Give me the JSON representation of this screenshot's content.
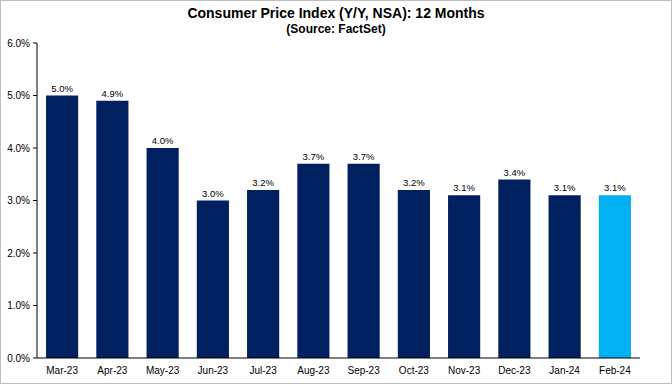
{
  "chart_data": {
    "type": "bar",
    "title": "Consumer Price Index (Y/Y, NSA): 12 Months",
    "subtitle": "(Source: FactSet)",
    "categories": [
      "Mar-23",
      "Apr-23",
      "May-23",
      "Jun-23",
      "Jul-23",
      "Aug-23",
      "Sep-23",
      "Oct-23",
      "Nov-23",
      "Dec-23",
      "Jan-24",
      "Feb-24"
    ],
    "values": [
      5.0,
      4.9,
      4.0,
      3.0,
      3.2,
      3.7,
      3.7,
      3.2,
      3.1,
      3.4,
      3.1,
      3.1
    ],
    "value_labels": [
      "5.0%",
      "4.9%",
      "4.0%",
      "3.0%",
      "3.2%",
      "3.7%",
      "3.7%",
      "3.2%",
      "3.1%",
      "3.4%",
      "3.1%",
      "3.1%"
    ],
    "colors": [
      "#002060",
      "#002060",
      "#002060",
      "#002060",
      "#002060",
      "#002060",
      "#002060",
      "#002060",
      "#002060",
      "#002060",
      "#002060",
      "#00b0f0"
    ],
    "ylim": [
      0,
      6
    ],
    "yticks": [
      {
        "value": 0,
        "label": "0.0%"
      },
      {
        "value": 1,
        "label": "1.0%"
      },
      {
        "value": 2,
        "label": "2.0%"
      },
      {
        "value": 3,
        "label": "3.0%"
      },
      {
        "value": 4,
        "label": "4.0%"
      },
      {
        "value": 5,
        "label": "5.0%"
      },
      {
        "value": 6,
        "label": "6.0%"
      }
    ],
    "grid": false,
    "data_labels": true
  }
}
